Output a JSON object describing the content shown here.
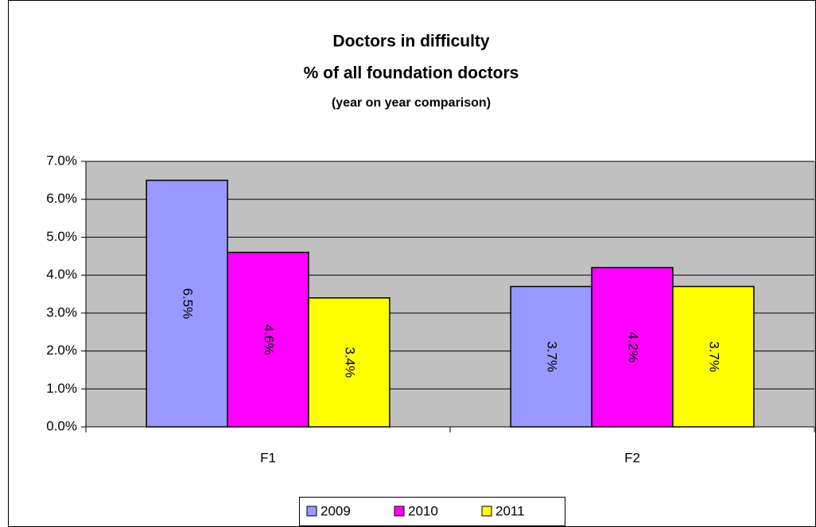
{
  "chart_data": {
    "type": "bar",
    "title": "Doctors in difficulty",
    "subtitle": "% of all foundation doctors",
    "note": "(year on year comparison)",
    "categories": [
      "F1",
      "F2"
    ],
    "series": [
      {
        "name": "2009",
        "color": "#9999ff",
        "values": [
          6.5,
          3.7
        ],
        "value_labels": [
          "6.5%",
          "3.7%"
        ]
      },
      {
        "name": "2010",
        "color": "#ff00ff",
        "values": [
          4.6,
          4.2
        ],
        "value_labels": [
          "4.6%",
          "4.2%"
        ]
      },
      {
        "name": "2011",
        "color": "#ffff00",
        "values": [
          3.4,
          3.7
        ],
        "value_labels": [
          "3.4%",
          "3.7%"
        ]
      }
    ],
    "ylim": [
      0,
      7
    ],
    "yticks": [
      {
        "value": 0,
        "label": "0.0%"
      },
      {
        "value": 1,
        "label": "1.0%"
      },
      {
        "value": 2,
        "label": "2.0%"
      },
      {
        "value": 3,
        "label": "3.0%"
      },
      {
        "value": 4,
        "label": "4.0%"
      },
      {
        "value": 5,
        "label": "5.0%"
      },
      {
        "value": 6,
        "label": "6.0%"
      },
      {
        "value": 7,
        "label": "7.0%"
      }
    ],
    "grid": true,
    "legend": "bottom"
  }
}
